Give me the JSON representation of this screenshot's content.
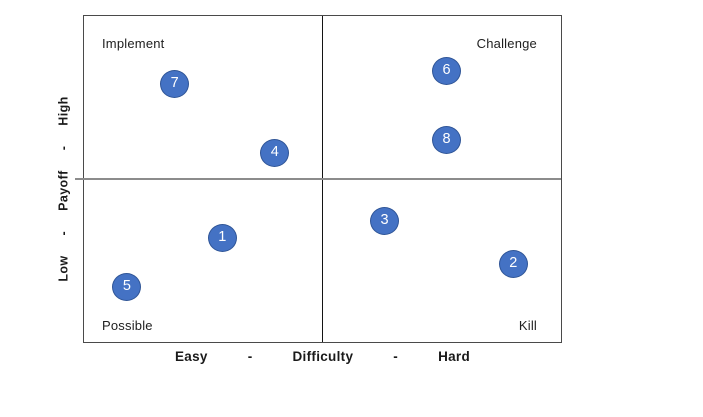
{
  "figure": {
    "quadrant_labels": {
      "top_left": "Implement",
      "top_right": "Challenge",
      "bottom_left": "Possible",
      "bottom_right": "Kill"
    },
    "x_axis_parts": [
      "Easy",
      "-",
      "Difficulty",
      "-",
      "Hard"
    ],
    "y_axis_parts": [
      "Low",
      "-",
      "Payoff",
      "-",
      "High"
    ],
    "colors": {
      "point_fill": "#4472C4",
      "point_border": "#2F5597",
      "point_text": "#ffffff",
      "outer_border": "#4a4a4a",
      "vertical_divider": "#141414",
      "horizontal_divider": "#8c8c8c",
      "label_text": "#212121"
    }
  },
  "chart_data": {
    "type": "scatter",
    "title": "",
    "xlabel": "Easy - Difficulty - Hard",
    "ylabel": "Low - Payoff - High",
    "xlim": [
      0,
      100
    ],
    "ylim": [
      0,
      100
    ],
    "grid": "2x2 quadrants",
    "legend": "none",
    "quadrants": [
      {
        "position": "top_left",
        "label": "Implement",
        "meaning": "low difficulty, high payoff"
      },
      {
        "position": "top_right",
        "label": "Challenge",
        "meaning": "high difficulty, high payoff"
      },
      {
        "position": "bottom_left",
        "label": "Possible",
        "meaning": "low difficulty, low payoff"
      },
      {
        "position": "bottom_right",
        "label": "Kill",
        "meaning": "high difficulty, low payoff"
      }
    ],
    "points": [
      {
        "label": "1",
        "difficulty": 29,
        "payoff": 32,
        "quadrant": "Possible"
      },
      {
        "label": "2",
        "difficulty": 90,
        "payoff": 24,
        "quadrant": "Kill"
      },
      {
        "label": "3",
        "difficulty": 63,
        "payoff": 37,
        "quadrant": "Kill"
      },
      {
        "label": "4",
        "difficulty": 40,
        "payoff": 58,
        "quadrant": "Implement"
      },
      {
        "label": "5",
        "difficulty": 9,
        "payoff": 17,
        "quadrant": "Possible"
      },
      {
        "label": "6",
        "difficulty": 76,
        "payoff": 83,
        "quadrant": "Challenge"
      },
      {
        "label": "7",
        "difficulty": 19,
        "payoff": 79,
        "quadrant": "Implement"
      },
      {
        "label": "8",
        "difficulty": 76,
        "payoff": 62,
        "quadrant": "Challenge"
      }
    ]
  }
}
